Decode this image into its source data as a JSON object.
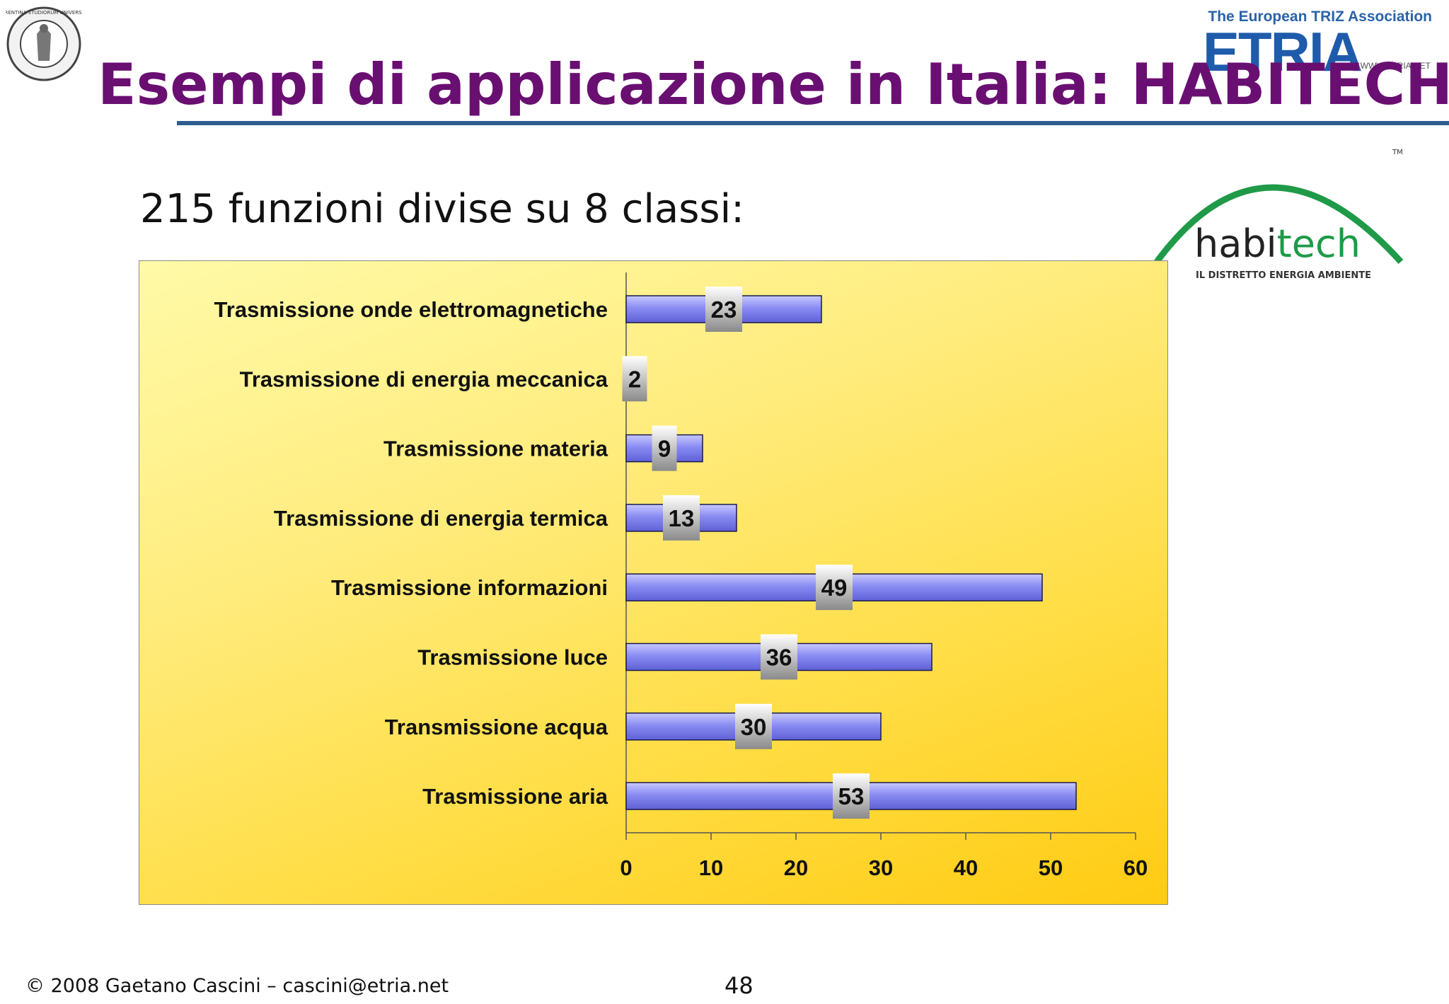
{
  "title": "Esempi di applicazione in Italia: HABITECH",
  "subtitle": "215 funzioni divise su 8 classi:",
  "logos": {
    "seal_icon": "university-seal",
    "seal_text": "FLORENTINA STUDIORUM UNIVERSITAS",
    "etria_association": "The European TRIZ Association",
    "etria_word": "ETRIA",
    "etria_url": "WWW.ETRIA.NET",
    "habitech_name_a": "habi",
    "habitech_name_b": "tech",
    "habitech_tagline": "IL DISTRETTO ENERGIA AMBIENTE",
    "habitech_tm": "TM"
  },
  "colors": {
    "title": "#6a0f72",
    "rule": "#2e5d8f",
    "bar_fill": "#8a8cf2",
    "bar_edge": "#1a1a4a",
    "label_box_top": "#ffffff",
    "label_box_bottom": "#8a8a8a",
    "habitech_green": "#1f9a48"
  },
  "chart_data": {
    "type": "bar",
    "orientation": "horizontal",
    "categories": [
      "Trasmissione onde elettromagnetiche",
      "Trasmissione di energia meccanica",
      "Trasmissione materia",
      "Trasmissione di energia termica",
      "Trasmissione informazioni",
      "Trasmissione luce",
      "Transmissione acqua",
      "Trasmissione aria"
    ],
    "values": [
      23,
      2,
      9,
      13,
      49,
      36,
      30,
      53
    ],
    "xlim": [
      0,
      60
    ],
    "xticks": [
      "0",
      "10",
      "20",
      "30",
      "40",
      "50",
      "60"
    ],
    "title": "",
    "xlabel": "",
    "ylabel": "",
    "grid": false,
    "legend": "none",
    "data_labels": true
  },
  "footer": {
    "copyright": "© 2008 Gaetano Cascini – cascini@etria.net",
    "page_number": "48"
  }
}
